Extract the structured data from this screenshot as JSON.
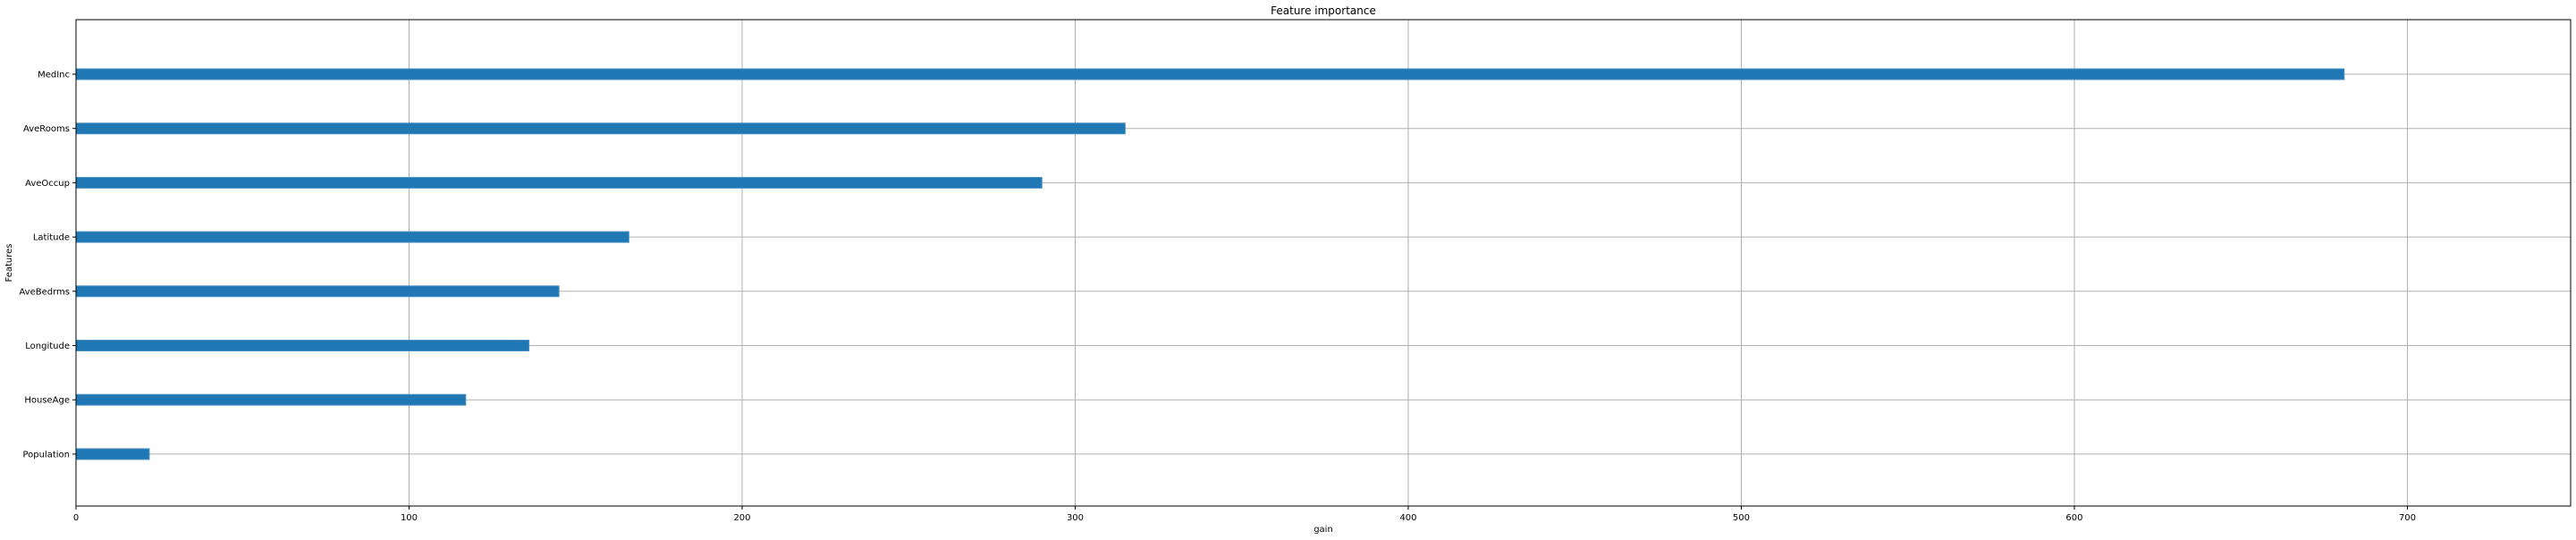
{
  "chart_data": {
    "type": "bar",
    "orientation": "horizontal",
    "title": "Feature importance",
    "xlabel": "gain",
    "ylabel": "Features",
    "categories": [
      "MedInc",
      "AveRooms",
      "AveOccup",
      "Latitude",
      "AveBedrms",
      "Longitude",
      "HouseAge",
      "Population"
    ],
    "values": [
      681,
      315,
      290,
      166,
      145,
      136,
      117,
      22
    ],
    "xlim": [
      0,
      749
    ],
    "xticks": [
      0,
      100,
      200,
      300,
      400,
      500,
      600,
      700
    ],
    "grid": true,
    "legend": "none",
    "bar_color": "#1f77b4",
    "bar_edge_color": "#4a90c2",
    "grid_color": "#b0b0b0"
  }
}
